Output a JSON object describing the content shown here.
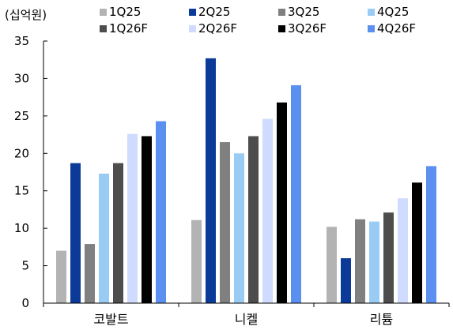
{
  "chart_data": {
    "type": "bar",
    "unit_label": "(십억원)",
    "title": "",
    "xlabel": "",
    "ylabel": "",
    "categories": [
      "코발트",
      "니켈",
      "리튬"
    ],
    "ylim": [
      0,
      35
    ],
    "yticks": [
      0,
      5,
      10,
      15,
      20,
      25,
      30,
      35
    ],
    "grid": false,
    "legend_position": "top",
    "series": [
      {
        "name": "1Q25",
        "color": "#b3b3b3",
        "values": [
          7.0,
          11.1,
          10.2
        ]
      },
      {
        "name": "2Q25",
        "color": "#0b3a99",
        "values": [
          18.7,
          32.7,
          6.0
        ]
      },
      {
        "name": "3Q25",
        "color": "#808080",
        "values": [
          7.9,
          21.5,
          11.2
        ]
      },
      {
        "name": "4Q25",
        "color": "#99ccf5",
        "values": [
          17.3,
          20.0,
          10.9
        ]
      },
      {
        "name": "1Q26F",
        "color": "#4d4d4d",
        "values": [
          18.7,
          22.3,
          12.1
        ]
      },
      {
        "name": "2Q26F",
        "color": "#cfdcff",
        "values": [
          22.6,
          24.6,
          14.0
        ]
      },
      {
        "name": "3Q26F",
        "color": "#000000",
        "values": [
          22.3,
          26.8,
          16.1
        ]
      },
      {
        "name": "4Q26F",
        "color": "#5b8ff0",
        "values": [
          24.3,
          29.1,
          18.3
        ]
      }
    ]
  }
}
